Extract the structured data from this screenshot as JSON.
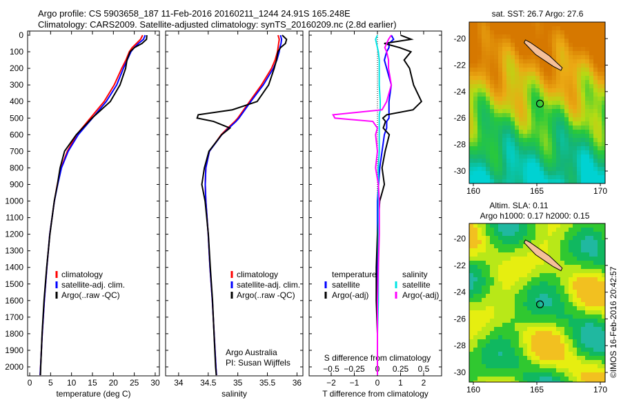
{
  "header": {
    "line1": "Argo profile: CS 5903658_187 11-Feb-2016 20160211_1244 24.91S 165.248E",
    "line2": "Climatology: CARS2009. Satellite-adjusted climatology: synTS_20160209.nc (2.8d earlier)"
  },
  "credits": {
    "org": "Argo Australia",
    "pi": "PI: Susan Wijffels",
    "stamp": "©IMOS 16-Feb-2016 20:42:57"
  },
  "colors": {
    "clim": "#ff0000",
    "sat": "#0000ff",
    "argo": "#000000",
    "sal_sat": "#00e5e5",
    "sal_argo": "#ff00ff"
  },
  "chart_data": [
    {
      "type": "line",
      "xlabel": "temperature (deg C)",
      "ylabel": "",
      "xlim": [
        -0.5,
        31
      ],
      "ylim": [
        2050,
        0
      ],
      "xticks": [
        "0",
        "5",
        "10",
        "15",
        "20",
        "25",
        "30"
      ],
      "xtick_values": [
        0,
        5,
        10,
        15,
        20,
        25,
        30
      ],
      "yticks": [
        "0",
        "100",
        "200",
        "300",
        "400",
        "500",
        "600",
        "700",
        "800",
        "900",
        "1000",
        "1100",
        "1200",
        "1300",
        "1400",
        "1500",
        "1600",
        "1700",
        "1800",
        "1900",
        "2000"
      ],
      "legend": [
        "climatology",
        "satellite-adj. clim.",
        "Argo(..raw -QC)"
      ],
      "depth": [
        0,
        25,
        50,
        75,
        100,
        150,
        200,
        300,
        400,
        500,
        600,
        700,
        800,
        900,
        1000,
        1200,
        1400,
        1600,
        1800,
        2000,
        2050
      ],
      "series": [
        {
          "name": "climatology",
          "values": [
            27,
            26.5,
            25.5,
            24.5,
            23.8,
            23,
            22,
            20.2,
            17.8,
            14.5,
            11.2,
            9,
            7.5,
            6.6,
            5.9,
            4.8,
            4.1,
            3.5,
            3,
            2.6,
            2.5
          ]
        },
        {
          "name": "satellite-adj. clim.",
          "values": [
            27.6,
            27.2,
            26,
            25,
            24.2,
            23.3,
            22.4,
            20.8,
            18.3,
            15,
            11.6,
            9.2,
            7.6,
            6.7,
            5.9,
            4.8,
            4.1,
            3.5,
            3,
            2.6,
            2.5
          ]
        },
        {
          "name": "Argo(..raw -QC)",
          "values": [
            28,
            27.6,
            26.5,
            25,
            24.3,
            23.6,
            23,
            21.3,
            18.9,
            14.8,
            11.4,
            8.7,
            7.4,
            6.4,
            5.8,
            4.8,
            4.1,
            3.5,
            3,
            2.6,
            2.5
          ]
        }
      ]
    },
    {
      "type": "line",
      "xlabel": "salinity",
      "xlim": [
        33.78,
        36.1
      ],
      "ylim": [
        2050,
        0
      ],
      "xticks": [
        "34",
        "34.5",
        "35",
        "35.5",
        "36"
      ],
      "xtick_values": [
        34,
        34.5,
        35,
        35.5,
        36
      ],
      "legend": [
        "climatology",
        "satellite-adj. clim.",
        "Argo(..raw -QC)"
      ],
      "depth": [
        0,
        25,
        50,
        75,
        100,
        150,
        200,
        300,
        400,
        450,
        480,
        500,
        520,
        560,
        600,
        700,
        800,
        900,
        1000,
        1200,
        1400,
        1600,
        1800,
        2000,
        2050
      ],
      "series": [
        {
          "name": "climatology",
          "values": [
            35.68,
            35.7,
            35.69,
            35.68,
            35.67,
            35.63,
            35.57,
            35.4,
            35.2,
            35.1,
            35.04,
            35.0,
            34.95,
            34.83,
            34.72,
            34.52,
            34.46,
            34.45,
            34.46,
            34.5,
            34.53,
            34.57,
            34.6,
            34.63,
            34.64
          ]
        },
        {
          "name": "satellite-adj. clim.",
          "values": [
            35.72,
            35.74,
            35.73,
            35.71,
            35.7,
            35.66,
            35.6,
            35.43,
            35.22,
            35.12,
            35.06,
            35.02,
            34.97,
            34.85,
            34.73,
            34.52,
            34.46,
            34.45,
            34.46,
            34.5,
            34.53,
            34.57,
            34.6,
            34.63,
            34.64
          ]
        },
        {
          "name": "Argo(..raw -QC)",
          "values": [
            35.75,
            35.8,
            35.78,
            35.72,
            35.7,
            35.68,
            35.62,
            35.5,
            35.3,
            34.9,
            34.35,
            34.34,
            34.6,
            34.85,
            34.7,
            34.5,
            34.45,
            34.42,
            34.45,
            34.5,
            34.53,
            34.57,
            34.6,
            34.63,
            34.64
          ]
        }
      ]
    },
    {
      "type": "line",
      "xlabel": "T difference from climatology",
      "x2label": "S difference from climatology",
      "xlim": [
        -2.75,
        2.9
      ],
      "ylim": [
        2050,
        0
      ],
      "xticks": [
        "−2",
        "−1",
        "0",
        "1",
        "2"
      ],
      "xtick_values": [
        -2,
        -1,
        0,
        1,
        2
      ],
      "x2ticks": [
        "−0.5",
        "−0.25",
        "0",
        "0.25",
        "0.5"
      ],
      "x2tick_values": [
        -0.5,
        -0.25,
        0,
        0.25,
        0.5
      ],
      "legend": {
        "temperature": "temperature",
        "salinity": "salinity",
        "t_sat": "satellite",
        "t_argo": "Argo(-adj)",
        "s_sat": "satellite",
        "s_argo": "Argo(-adj)"
      },
      "depth": [
        0,
        25,
        50,
        75,
        100,
        150,
        200,
        300,
        400,
        450,
        480,
        500,
        520,
        560,
        600,
        700,
        800,
        900,
        1000,
        1200,
        1400,
        1600,
        1800,
        2000,
        2050
      ],
      "series": [
        {
          "name": "T satellite",
          "unit": "T",
          "values": [
            0.6,
            0.7,
            0.5,
            0.5,
            0.4,
            0.3,
            0.4,
            0.6,
            0.5,
            0.5,
            0.5,
            0.5,
            0.4,
            0.4,
            0.3,
            0.2,
            0.1,
            0.05,
            0,
            0,
            0,
            0,
            0,
            0,
            0
          ]
        },
        {
          "name": "T Argo(-adj)",
          "unit": "T",
          "values": [
            1.0,
            1.6,
            0.4,
            0.9,
            1.3,
            1.1,
            1.5,
            1.7,
            1.9,
            1.4,
            0.3,
            0.3,
            0.5,
            0.3,
            0.4,
            0.2,
            0.2,
            0.3,
            0.1,
            0,
            -0.05,
            -0.05,
            0,
            0,
            0
          ]
        },
        {
          "name": "S satellite",
          "unit": "S",
          "values": [
            0,
            -0.02,
            -0.01,
            0,
            0.01,
            0.02,
            0.02,
            0.02,
            0.03,
            0.03,
            0.02,
            0.02,
            0.02,
            0.02,
            0.02,
            0.02,
            0.01,
            0.01,
            0.01,
            0.01,
            0.01,
            0.01,
            0,
            0,
            0
          ]
        },
        {
          "name": "S Argo(-adj)",
          "unit": "S",
          "values": [
            0.15,
            0.12,
            0.1,
            0.08,
            0.1,
            0.12,
            0.12,
            0.15,
            0.1,
            0.05,
            -0.48,
            -0.46,
            -0.05,
            0,
            -0.02,
            0,
            -0.02,
            0.01,
            0.02,
            0.02,
            0.01,
            0,
            0,
            0,
            0
          ]
        }
      ]
    }
  ],
  "maps": [
    {
      "title1": "sat. SST: 26.7 Argo: 27.6",
      "title2": "",
      "kind": "sst"
    },
    {
      "title1": "Altim. SLA: 0.11",
      "title2": "Argo h1000: 0.17 h2000: 0.15",
      "kind": "sla"
    }
  ],
  "map_axes": {
    "xticks": [
      "160",
      "165",
      "170"
    ],
    "yticks": [
      "-20",
      "-22",
      "-24",
      "-26",
      "-28",
      "-30"
    ]
  }
}
